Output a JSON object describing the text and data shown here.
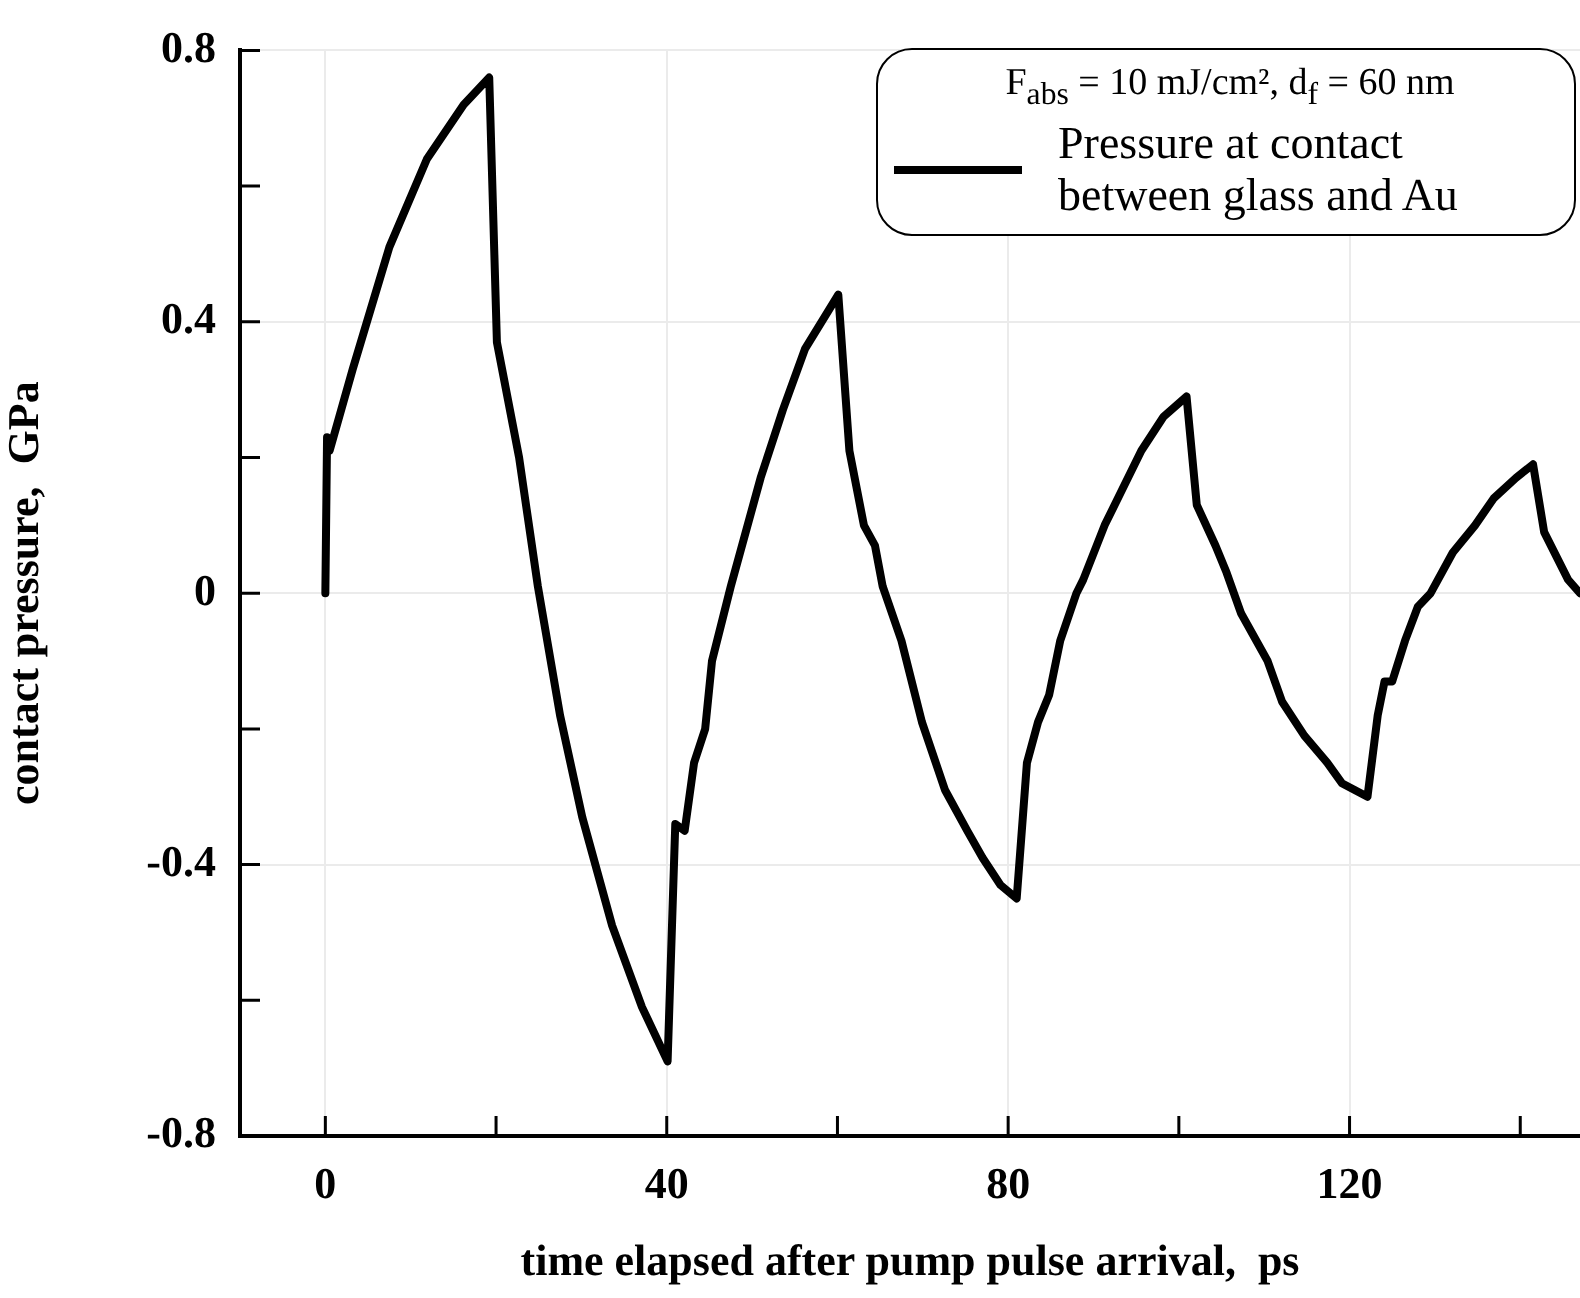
{
  "chart_data": {
    "type": "line",
    "xlabel": "time elapsed after pump pulse arrival,  ps",
    "ylabel": "contact pressure,  GPa",
    "legend_title": "F$_{abs}$ = 10 mJ/cm², d$_{f}$ = 60 nm",
    "legend": "top right",
    "grid": true,
    "marker": "none",
    "line_style": "solid",
    "xlim": [
      -10,
      147
    ],
    "xticks": [
      0,
      {
        "value": 20,
        "label": null
      },
      40,
      {
        "value": 60,
        "label": null
      },
      80,
      {
        "value": 100,
        "label": null
      },
      120,
      {
        "value": 140,
        "label": null
      }
    ],
    "ylim": [
      -0.8,
      0.8
    ],
    "yticks": [
      -0.8,
      {
        "value": -0.6,
        "label": null
      },
      -0.4,
      {
        "value": -0.2,
        "label": null
      },
      0,
      {
        "value": 0.2,
        "label": null
      },
      0.4,
      {
        "value": 0.6,
        "label": null
      },
      0.8
    ],
    "series": [
      {
        "name": "Pressure at contact between glass and Au",
        "color": "#000000",
        "x": [
          0,
          0.2,
          0.5,
          3.2,
          7.5,
          11.9,
          16.2,
          19.2,
          20.1,
          22.7,
          24.9,
          27.5,
          30.1,
          33.6,
          37.1,
          40.1,
          41.0,
          42.1,
          43.2,
          44.5,
          45.3,
          47.5,
          51.0,
          53.6,
          56.2,
          60.1,
          61.4,
          63.1,
          64.4,
          65.3,
          67.5,
          69.9,
          72.6,
          75.2,
          77.0,
          79.1,
          81.0,
          82.2,
          83.5,
          84.8,
          86.1,
          88.0,
          88.8,
          91.3,
          95.6,
          98.2,
          100.9,
          102.1,
          104.3,
          105.6,
          107.3,
          110.4,
          112.1,
          114.7,
          117.4,
          119.1,
          122.1,
          123.3,
          124.1,
          125.0,
          126.5,
          128.0,
          129.5,
          132.1,
          134.7,
          136.9,
          139.5,
          141.5,
          142.8,
          145.6,
          147
        ],
        "values": [
          0,
          0.23,
          0.21,
          0.33,
          0.51,
          0.64,
          0.72,
          0.76,
          0.37,
          0.2,
          0.01,
          -0.18,
          -0.33,
          -0.49,
          -0.61,
          -0.69,
          -0.34,
          -0.35,
          -0.25,
          -0.2,
          -0.1,
          0.01,
          0.17,
          0.27,
          0.36,
          0.44,
          0.21,
          0.1,
          0.07,
          0.01,
          -0.07,
          -0.19,
          -0.29,
          -0.35,
          -0.39,
          -0.43,
          -0.45,
          -0.25,
          -0.19,
          -0.15,
          -0.07,
          0,
          0.02,
          0.1,
          0.21,
          0.26,
          0.29,
          0.13,
          0.07,
          0.03,
          -0.03,
          -0.1,
          -0.16,
          -0.21,
          -0.25,
          -0.28,
          -0.3,
          -0.18,
          -0.13,
          -0.13,
          -0.07,
          -0.02,
          0,
          0.06,
          0.1,
          0.14,
          0.17,
          0.19,
          0.09,
          0.02,
          0
        ]
      }
    ]
  }
}
